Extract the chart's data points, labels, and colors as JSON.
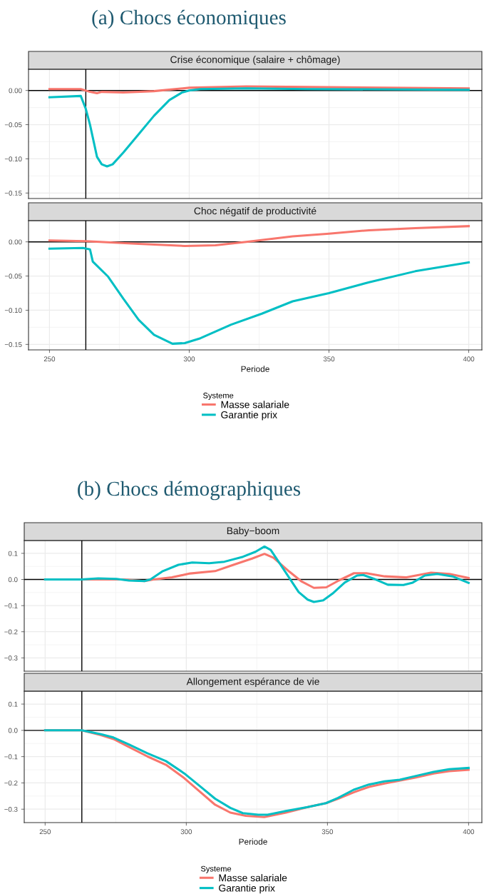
{
  "chart_data": [
    {
      "type": "line",
      "title": "(a) Chocs économiques",
      "subtitle": "Crise économique (salaire + chômage)",
      "xlim": [
        242.5,
        404.7
      ],
      "xticks": [
        250,
        300,
        350,
        400
      ],
      "ylim": [
        -0.158,
        0.031
      ],
      "yticks": [
        {
          "value": -0.15,
          "label": "−0.15"
        },
        {
          "value": -0.1,
          "label": "−0.10"
        },
        {
          "value": -0.05,
          "label": "−0.05"
        },
        {
          "value": 0,
          "label": "0.00"
        }
      ],
      "tick_labels": "y",
      "grid": true,
      "legend": false,
      "ref_lines": [
        {
          "axis": "x",
          "value": 263,
          "color": "#000000"
        },
        {
          "axis": "y",
          "value": 0,
          "color": "#000000"
        }
      ],
      "series": [
        {
          "color": "#f8766d",
          "x": [
            250,
            261.2,
            264.5,
            267,
            268.7,
            276.4,
            287.4,
            300,
            320.5,
            342.5,
            400
          ],
          "values": [
            0.002,
            0.002,
            -0.002,
            -0.004,
            -0.002,
            -0.003,
            -0.001,
            0.004,
            0.006,
            0.005,
            0.003
          ]
        },
        {
          "color": "#00bfc4",
          "x": [
            250,
            261.2,
            263,
            264.5,
            267,
            268.7,
            270.6,
            272.6,
            276.4,
            281.9,
            287.4,
            292.9,
            297.4,
            300,
            304,
            320.5,
            342.5,
            400
          ],
          "values": [
            -0.01,
            -0.008,
            -0.027,
            -0.05,
            -0.097,
            -0.108,
            -0.111,
            -0.108,
            -0.091,
            -0.064,
            -0.037,
            -0.014,
            -0.003,
            0.0,
            0.002,
            0.003,
            0.002,
            0.001
          ]
        }
      ]
    },
    {
      "type": "line",
      "title": "Choc négatif de productivité",
      "xlabel": "Periode",
      "legend_title": "Systeme",
      "xlim": [
        242.5,
        404.7
      ],
      "xticks": [
        250,
        300,
        350,
        400
      ],
      "ylim": [
        -0.158,
        0.031
      ],
      "yticks": [
        {
          "value": -0.15,
          "label": "−0.15"
        },
        {
          "value": -0.1,
          "label": "−0.10"
        },
        {
          "value": -0.05,
          "label": "−0.05"
        },
        {
          "value": 0,
          "label": "0.00"
        }
      ],
      "grid": true,
      "legend": "bottom",
      "ref_lines": [
        {
          "axis": "x",
          "value": 263,
          "color": "#000000"
        },
        {
          "axis": "y",
          "value": 0,
          "color": "#000000"
        }
      ],
      "series": [
        {
          "name": "Masse salariale",
          "color": "#f8766d",
          "x": [
            250,
            263,
            281.9,
            298.4,
            309.4,
            320.4,
            337,
            350,
            364.4,
            380.9,
            400
          ],
          "values": [
            0.002,
            0.001,
            -0.003,
            -0.006,
            -0.005,
            0.0,
            0.008,
            0.012,
            0.017,
            0.02,
            0.023
          ]
        },
        {
          "name": "Garantie prix",
          "color": "#00bfc4",
          "x": [
            250,
            262,
            264.5,
            265.5,
            271,
            276.4,
            281.9,
            287.4,
            294,
            298.4,
            304,
            315,
            326,
            337,
            350,
            364.4,
            380.9,
            400
          ],
          "values": [
            -0.01,
            -0.009,
            -0.011,
            -0.029,
            -0.051,
            -0.083,
            -0.114,
            -0.136,
            -0.149,
            -0.148,
            -0.141,
            -0.121,
            -0.105,
            -0.087,
            -0.075,
            -0.059,
            -0.043,
            -0.03
          ]
        }
      ]
    },
    {
      "type": "line",
      "title": "(b) Chocs démographiques",
      "subtitle": "Baby−boom",
      "xlim": [
        242.6,
        404.7
      ],
      "xticks": [
        250,
        300,
        350,
        400
      ],
      "ylim": [
        -0.351,
        0.149
      ],
      "yticks": [
        {
          "value": -0.3,
          "label": "−0.3"
        },
        {
          "value": -0.2,
          "label": "−0.2"
        },
        {
          "value": -0.1,
          "label": "−0.1"
        },
        {
          "value": 0,
          "label": "0.0"
        },
        {
          "value": 0.1,
          "label": "0.1"
        }
      ],
      "tick_labels": "y",
      "grid": true,
      "legend": false,
      "ref_lines": [
        {
          "axis": "x",
          "value": 263,
          "color": "#000000"
        },
        {
          "axis": "y",
          "value": 0,
          "color": "#000000"
        }
      ],
      "series": [
        {
          "color": "#f8766d",
          "x": [
            250,
            262.8,
            277.5,
            285.2,
            288.4,
            294.9,
            301.4,
            310.2,
            316.7,
            323.3,
            327.7,
            330.9,
            336.5,
            340.9,
            345.2,
            349.6,
            354,
            359.4,
            363.8,
            370.3,
            378,
            386.7,
            393.2,
            400
          ],
          "values": [
            0,
            0,
            0,
            -0.006,
            0,
            0.008,
            0.023,
            0.032,
            0.056,
            0.08,
            0.098,
            0.083,
            0.03,
            -0.008,
            -0.032,
            -0.03,
            -0.004,
            0.024,
            0.024,
            0.012,
            0.008,
            0.026,
            0.021,
            0.006
          ]
        },
        {
          "color": "#00bfc4",
          "x": [
            250,
            262.8,
            268.8,
            275.3,
            279.7,
            285.2,
            287.3,
            291.7,
            297.2,
            302.1,
            308.1,
            313.5,
            320.1,
            324.5,
            327.7,
            329.9,
            333.2,
            336.5,
            339.8,
            343,
            345.2,
            348.5,
            351.8,
            356.1,
            360.5,
            362.7,
            367.1,
            371.4,
            376.9,
            380.2,
            384.5,
            388.9,
            394.3,
            400
          ],
          "values": [
            0,
            0,
            0.004,
            0.002,
            -0.004,
            -0.006,
            0,
            0.032,
            0.056,
            0.065,
            0.062,
            0.068,
            0.087,
            0.106,
            0.126,
            0.113,
            0.06,
            0.006,
            -0.048,
            -0.077,
            -0.086,
            -0.08,
            -0.054,
            -0.012,
            0.015,
            0.017,
            0,
            -0.02,
            -0.021,
            -0.012,
            0.015,
            0.021,
            0.012,
            -0.013
          ]
        }
      ]
    },
    {
      "type": "line",
      "title": "Allongement espérance de vie",
      "xlabel": "Periode",
      "legend_title": "Systeme",
      "xlim": [
        242.6,
        404.7
      ],
      "xticks": [
        250,
        300,
        350,
        400
      ],
      "ylim": [
        -0.351,
        0.149
      ],
      "yticks": [
        {
          "value": -0.3,
          "label": "−0.3"
        },
        {
          "value": -0.2,
          "label": "−0.2"
        },
        {
          "value": -0.1,
          "label": "−0.1"
        },
        {
          "value": 0,
          "label": "0.0"
        },
        {
          "value": 0.1,
          "label": "0.1"
        }
      ],
      "grid": true,
      "legend": "bottom",
      "ref_lines": [
        {
          "axis": "x",
          "value": 263,
          "color": "#000000"
        },
        {
          "axis": "y",
          "value": 0,
          "color": "#000000"
        }
      ],
      "series": [
        {
          "name": "Masse salariale",
          "color": "#f8766d",
          "x": [
            250,
            263,
            269.8,
            274.2,
            279.7,
            286.2,
            292.8,
            299.3,
            304.8,
            310.2,
            315.6,
            321.1,
            327.6,
            335.3,
            343,
            349.5,
            353.8,
            359.3,
            364.7,
            370.2,
            381.1,
            387.6,
            393.1,
            400
          ],
          "values": [
            0,
            0,
            -0.018,
            -0.033,
            -0.063,
            -0.099,
            -0.131,
            -0.182,
            -0.233,
            -0.283,
            -0.313,
            -0.325,
            -0.33,
            -0.313,
            -0.292,
            -0.277,
            -0.26,
            -0.236,
            -0.215,
            -0.202,
            -0.18,
            -0.164,
            -0.155,
            -0.15
          ]
        },
        {
          "name": "Garantie prix",
          "color": "#00bfc4",
          "x": [
            250,
            263,
            269.8,
            274.2,
            279.7,
            286.2,
            292.8,
            299.3,
            304.8,
            310.2,
            315.6,
            320,
            325.5,
            328.8,
            335.3,
            343,
            349.5,
            353.8,
            359.3,
            364.7,
            370.2,
            375.6,
            381.1,
            387.6,
            393.1,
            400
          ],
          "values": [
            0,
            0,
            -0.015,
            -0.027,
            -0.054,
            -0.087,
            -0.117,
            -0.164,
            -0.212,
            -0.26,
            -0.295,
            -0.315,
            -0.321,
            -0.321,
            -0.307,
            -0.292,
            -0.277,
            -0.257,
            -0.226,
            -0.206,
            -0.194,
            -0.188,
            -0.174,
            -0.158,
            -0.148,
            -0.143
          ]
        }
      ]
    }
  ]
}
